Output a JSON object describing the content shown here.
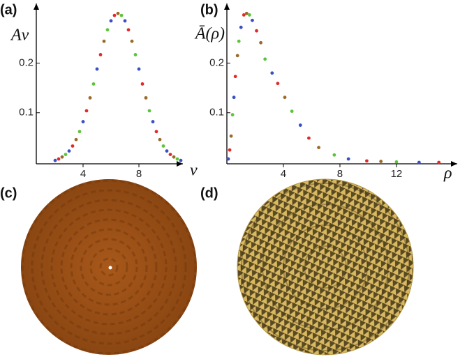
{
  "chart_data": [
    {
      "type": "scatter",
      "panel_label": "(a)",
      "ylabel": "Aν",
      "xlabel": "ν",
      "xlim": [
        0.65,
        11.15
      ],
      "ylim": [
        0,
        0.32
      ],
      "xticks": [
        4,
        8
      ],
      "yticks": [
        0.1,
        0.2
      ],
      "series": [
        {
          "color": "#3a4fc4",
          "x": [
            2,
            3,
            4,
            5,
            6,
            7,
            8,
            9,
            10,
            11
          ],
          "values": [
            0.004,
            0.023,
            0.082,
            0.188,
            0.285,
            0.285,
            0.188,
            0.082,
            0.023,
            0.004
          ]
        },
        {
          "color": "#e02a2a",
          "x": [
            2.25,
            3.25,
            4.25,
            5.25,
            6.25,
            7.25,
            8.25,
            9.25,
            10.25
          ],
          "values": [
            0.007,
            0.033,
            0.104,
            0.217,
            0.296,
            0.267,
            0.158,
            0.062,
            0.016
          ]
        },
        {
          "color": "#9a6a2a",
          "x": [
            2.5,
            3.5,
            4.5,
            5.5,
            6.5,
            7.5,
            8.5,
            9.5,
            10.5
          ],
          "values": [
            0.011,
            0.046,
            0.13,
            0.244,
            0.3,
            0.244,
            0.13,
            0.046,
            0.011
          ]
        },
        {
          "color": "#5cc43a",
          "x": [
            2.75,
            3.75,
            4.75,
            5.75,
            6.75,
            7.75,
            8.75,
            9.75,
            10.75
          ],
          "values": [
            0.016,
            0.062,
            0.158,
            0.267,
            0.296,
            0.217,
            0.104,
            0.033,
            0.007
          ]
        }
      ]
    },
    {
      "type": "scatter",
      "panel_label": "(b)",
      "ylabel": "Ā(ρ)",
      "xlabel": "ρ",
      "xlim": [
        0,
        16.3
      ],
      "ylim": [
        0,
        0.32
      ],
      "xticks": [
        4,
        8,
        12
      ],
      "yticks": [
        0.1,
        0.2
      ],
      "series": [
        {
          "color": "#3a4fc4",
          "x": [
            0.1,
            0.5,
            1.0,
            1.8,
            3.2,
            5.2,
            8.6,
            13.6
          ],
          "values": [
            0.007,
            0.131,
            0.272,
            0.286,
            0.18,
            0.075,
            0.007,
            0
          ]
        },
        {
          "color": "#e02a2a",
          "x": [
            0.2,
            0.6,
            1.2,
            2.1,
            3.6,
            5.8,
            9.9,
            15
          ],
          "values": [
            0.025,
            0.173,
            0.297,
            0.265,
            0.159,
            0.049,
            0.003,
            0
          ]
        },
        {
          "color": "#9a6a2a",
          "x": [
            0.3,
            0.75,
            1.4,
            2.4,
            4.1,
            6.5,
            10.9
          ],
          "values": [
            0.053,
            0.215,
            0.3,
            0.241,
            0.131,
            0.03,
            0.002
          ]
        },
        {
          "color": "#5cc43a",
          "x": [
            0.4,
            0.85,
            1.6,
            2.7,
            4.6,
            7.6,
            12
          ],
          "values": [
            0.096,
            0.244,
            0.297,
            0.208,
            0.103,
            0.015,
            0.001
          ]
        }
      ]
    }
  ],
  "images": [
    {
      "label": "(c)"
    },
    {
      "label": "(d)"
    }
  ]
}
